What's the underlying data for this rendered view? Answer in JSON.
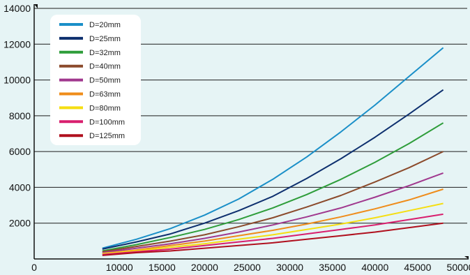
{
  "chart_data": {
    "type": "line",
    "title": "",
    "xlabel": "",
    "ylabel": "",
    "xlim": [
      0,
      50000
    ],
    "ylim": [
      0,
      14000
    ],
    "x_ticks": [
      "0",
      "10000",
      "15000",
      "20000",
      "25000",
      "30000",
      "35000",
      "40000",
      "45000",
      "50000"
    ],
    "x_tick_values": [
      0,
      10000,
      15000,
      20000,
      25000,
      30000,
      35000,
      40000,
      45000,
      50000
    ],
    "y_ticks": [
      "2000",
      "4000",
      "6000",
      "8000",
      "10000",
      "12000",
      "14000"
    ],
    "y_tick_values": [
      2000,
      4000,
      6000,
      8000,
      10000,
      12000,
      14000
    ],
    "grid": "horizontal",
    "legend_position": "top-left",
    "x": [
      8000,
      12000,
      16000,
      20000,
      24000,
      28000,
      32000,
      36000,
      40000,
      44000,
      48000
    ],
    "series": [
      {
        "name": "D=20mm",
        "color": "#1a8fc8",
        "values": [
          600,
          1100,
          1700,
          2450,
          3350,
          4450,
          5700,
          7100,
          8600,
          10200,
          11800
        ]
      },
      {
        "name": "D=25mm",
        "color": "#0d2f6e",
        "values": [
          550,
          950,
          1400,
          2000,
          2700,
          3500,
          4500,
          5600,
          6800,
          8100,
          9450
        ]
      },
      {
        "name": "D=32mm",
        "color": "#2e9d3a",
        "values": [
          450,
          800,
          1200,
          1650,
          2200,
          2850,
          3600,
          4450,
          5400,
          6450,
          7600
        ]
      },
      {
        "name": "D=40mm",
        "color": "#8b4a2b",
        "values": [
          400,
          700,
          1000,
          1350,
          1800,
          2300,
          2900,
          3550,
          4300,
          5100,
          6000
        ]
      },
      {
        "name": "D=50mm",
        "color": "#a0388e",
        "values": [
          350,
          600,
          850,
          1150,
          1500,
          1900,
          2350,
          2850,
          3450,
          4100,
          4800
        ]
      },
      {
        "name": "D=63mm",
        "color": "#ef8c1a",
        "values": [
          300,
          500,
          750,
          1000,
          1300,
          1600,
          1950,
          2350,
          2800,
          3300,
          3900
        ]
      },
      {
        "name": "D=80mm",
        "color": "#f5de12",
        "values": [
          300,
          450,
          650,
          850,
          1100,
          1350,
          1650,
          1950,
          2300,
          2700,
          3100
        ]
      },
      {
        "name": "D=100mm",
        "color": "#d81f6e",
        "values": [
          250,
          400,
          550,
          750,
          950,
          1150,
          1400,
          1650,
          1900,
          2200,
          2500
        ]
      },
      {
        "name": "D=125mm",
        "color": "#b0101e",
        "values": [
          200,
          350,
          450,
          600,
          750,
          900,
          1100,
          1300,
          1500,
          1750,
          2000
        ]
      }
    ]
  }
}
